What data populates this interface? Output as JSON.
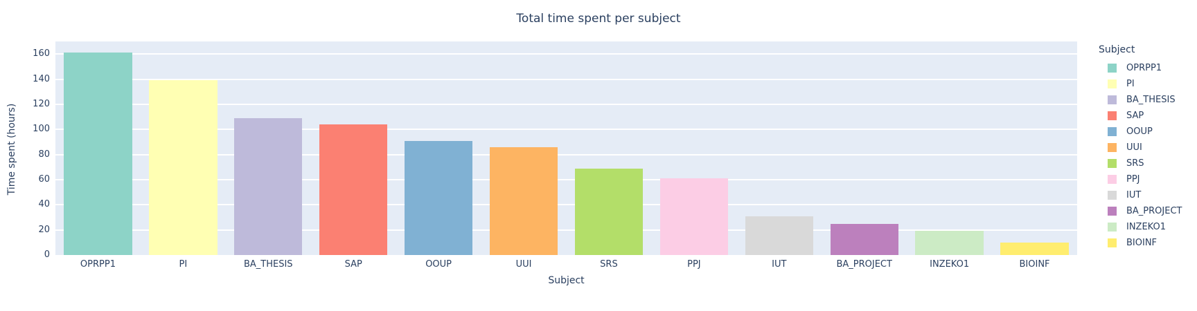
{
  "chart_data": {
    "type": "bar",
    "title": "Total time spent per subject",
    "xlabel": "Subject",
    "ylabel": "Time spent (hours)",
    "legend_title": "Subject",
    "legend_position": "right",
    "grid": true,
    "ylim": [
      0,
      170
    ],
    "yticks": [
      0,
      20,
      40,
      60,
      80,
      100,
      120,
      140,
      160
    ],
    "categories": [
      "OPRPP1",
      "PI",
      "BA_THESIS",
      "SAP",
      "OOUP",
      "UUI",
      "SRS",
      "PPJ",
      "IUT",
      "BA_PROJECT",
      "INZEKO1",
      "BIOINF"
    ],
    "values": [
      161,
      139,
      109,
      104,
      91,
      86,
      69,
      61,
      31,
      25,
      19,
      10
    ],
    "colors": [
      "#8dd3c7",
      "#ffffb3",
      "#bebada",
      "#fb8072",
      "#80b1d3",
      "#fdb462",
      "#b3de69",
      "#fccde5",
      "#d9d9d9",
      "#bc80bd",
      "#ccebc5",
      "#ffed6f"
    ],
    "plot_bg_color": "#e5ecf6",
    "grid_color": "#ffffff",
    "text_color": "#2a3f5f"
  }
}
